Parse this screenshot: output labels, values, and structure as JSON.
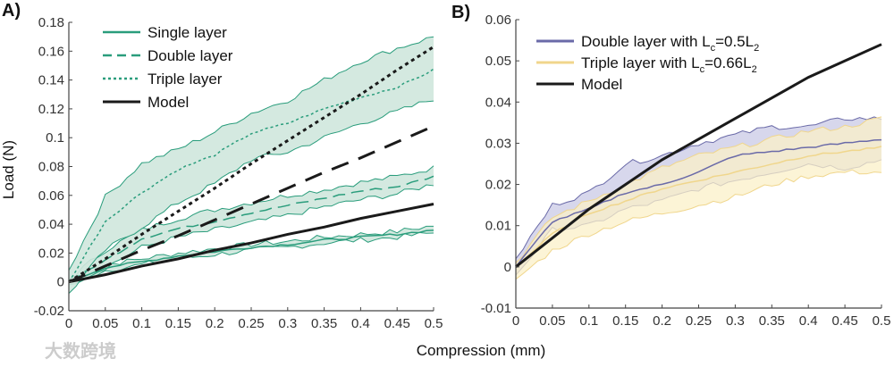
{
  "figure": {
    "xlabel": "Compression (mm)",
    "ylabel": "Load (N)",
    "watermark": "大数跨境"
  },
  "chart_data": [
    {
      "type": "line",
      "panel_label": "A)",
      "xlabel": "Compression (mm)",
      "ylabel": "Load (N)",
      "xlim": [
        0,
        0.5
      ],
      "ylim": [
        -0.02,
        0.18
      ],
      "xticks": [
        "0",
        "0.05",
        "0.1",
        "0.15",
        "0.2",
        "0.25",
        "0.3",
        "0.35",
        "0.4",
        "0.45",
        "0.5"
      ],
      "yticks": [
        "-0.02",
        "0",
        "0.02",
        "0.04",
        "0.06",
        "0.08",
        "0.1",
        "0.12",
        "0.14",
        "0.16",
        "0.18"
      ],
      "legend_position": "top-left",
      "x": [
        0,
        0.05,
        0.1,
        0.15,
        0.2,
        0.25,
        0.3,
        0.35,
        0.4,
        0.45,
        0.5
      ],
      "series": [
        {
          "name": "Single layer",
          "style": "solid",
          "color": "#2a9d7c",
          "fill": "#cfe7dd",
          "values": [
            0,
            0.01,
            0.014,
            0.018,
            0.021,
            0.024,
            0.026,
            0.029,
            0.031,
            0.033,
            0.036
          ],
          "upper": [
            0.002,
            0.012,
            0.016,
            0.02,
            0.023,
            0.026,
            0.028,
            0.031,
            0.033,
            0.035,
            0.039
          ],
          "lower": [
            -0.002,
            0.008,
            0.012,
            0.016,
            0.019,
            0.022,
            0.024,
            0.027,
            0.029,
            0.031,
            0.034
          ]
        },
        {
          "name": "Double layer",
          "style": "dashed",
          "color": "#2a9d7c",
          "fill": "#cfe7dd",
          "values": [
            0,
            0.015,
            0.03,
            0.037,
            0.042,
            0.048,
            0.053,
            0.058,
            0.063,
            0.066,
            0.073
          ],
          "upper": [
            0.002,
            0.022,
            0.036,
            0.044,
            0.05,
            0.055,
            0.06,
            0.064,
            0.069,
            0.073,
            0.079
          ],
          "lower": [
            -0.002,
            0.01,
            0.024,
            0.031,
            0.036,
            0.041,
            0.046,
            0.052,
            0.057,
            0.061,
            0.068
          ]
        },
        {
          "name": "Triple layer",
          "style": "dotted",
          "color": "#2a9d7c",
          "fill": "#cfe7dd",
          "values": [
            0,
            0.042,
            0.062,
            0.078,
            0.088,
            0.103,
            0.11,
            0.12,
            0.128,
            0.135,
            0.147
          ],
          "upper": [
            0.008,
            0.059,
            0.082,
            0.092,
            0.104,
            0.117,
            0.126,
            0.14,
            0.153,
            0.162,
            0.17
          ],
          "lower": [
            -0.008,
            0.022,
            0.038,
            0.055,
            0.068,
            0.085,
            0.09,
            0.1,
            0.11,
            0.118,
            0.127
          ]
        },
        {
          "name": "Model",
          "style": "solid",
          "color": "#1a1a1a",
          "values": [
            0,
            0.005,
            0.011,
            0.016,
            0.022,
            0.027,
            0.033,
            0.038,
            0.044,
            0.049,
            0.054
          ]
        },
        {
          "name": "Model (double)",
          "style": "dashed",
          "color": "#1a1a1a",
          "in_legend": false,
          "values": [
            0,
            0.011,
            0.022,
            0.032,
            0.043,
            0.054,
            0.065,
            0.076,
            0.086,
            0.097,
            0.108
          ]
        },
        {
          "name": "Model (triple)",
          "style": "dotted",
          "color": "#1a1a1a",
          "in_legend": false,
          "values": [
            0,
            0.016,
            0.033,
            0.049,
            0.065,
            0.082,
            0.098,
            0.114,
            0.13,
            0.147,
            0.163
          ]
        }
      ]
    },
    {
      "type": "line",
      "panel_label": "B)",
      "xlabel": "Compression (mm)",
      "ylabel": "",
      "xlim": [
        0,
        0.5
      ],
      "ylim": [
        -0.01,
        0.06
      ],
      "xticks": [
        "0",
        "0.05",
        "0.1",
        "0.15",
        "0.2",
        "0.25",
        "0.3",
        "0.35",
        "0.4",
        "0.45",
        "0.5"
      ],
      "yticks": [
        "-0.01",
        "0",
        "0.01",
        "0.02",
        "0.03",
        "0.04",
        "0.05",
        "0.06"
      ],
      "legend_position": "top-left",
      "x": [
        0,
        0.05,
        0.1,
        0.15,
        0.2,
        0.25,
        0.3,
        0.35,
        0.4,
        0.45,
        0.5
      ],
      "series": [
        {
          "name": "Double layer with Lc=0.5L2",
          "label_parts": [
            {
              "t": "Double layer with L"
            },
            {
              "sub": "c"
            },
            {
              "t": "=0.5L"
            },
            {
              "sub": "2"
            }
          ],
          "style": "solid",
          "color": "#6a6aa8",
          "fill": "#c9c9e6",
          "values": [
            0,
            0.011,
            0.014,
            0.018,
            0.02,
            0.023,
            0.027,
            0.028,
            0.029,
            0.03,
            0.031
          ],
          "upper": [
            0.002,
            0.015,
            0.018,
            0.025,
            0.027,
            0.03,
            0.032,
            0.034,
            0.034,
            0.036,
            0.036
          ],
          "lower": [
            -0.002,
            0.009,
            0.01,
            0.014,
            0.016,
            0.019,
            0.021,
            0.023,
            0.025,
            0.024,
            0.026
          ]
        },
        {
          "name": "Triple layer with Lc=0.66L2",
          "label_parts": [
            {
              "t": "Triple layer with L"
            },
            {
              "sub": "c"
            },
            {
              "t": "=0.66L"
            },
            {
              "sub": "2"
            }
          ],
          "style": "solid",
          "color": "#f0d68c",
          "fill": "#fbf0c8",
          "values": [
            0,
            0.008,
            0.013,
            0.016,
            0.019,
            0.021,
            0.023,
            0.025,
            0.027,
            0.028,
            0.029
          ],
          "upper": [
            0.001,
            0.012,
            0.016,
            0.02,
            0.024,
            0.027,
            0.029,
            0.031,
            0.033,
            0.034,
            0.036
          ],
          "lower": [
            -0.003,
            0.004,
            0.008,
            0.011,
            0.013,
            0.015,
            0.017,
            0.02,
            0.022,
            0.023,
            0.023
          ]
        },
        {
          "name": "Model",
          "style": "solid",
          "color": "#1a1a1a",
          "values": [
            0,
            0.007,
            0.014,
            0.02,
            0.026,
            0.031,
            0.036,
            0.041,
            0.046,
            0.05,
            0.054
          ]
        }
      ]
    }
  ]
}
